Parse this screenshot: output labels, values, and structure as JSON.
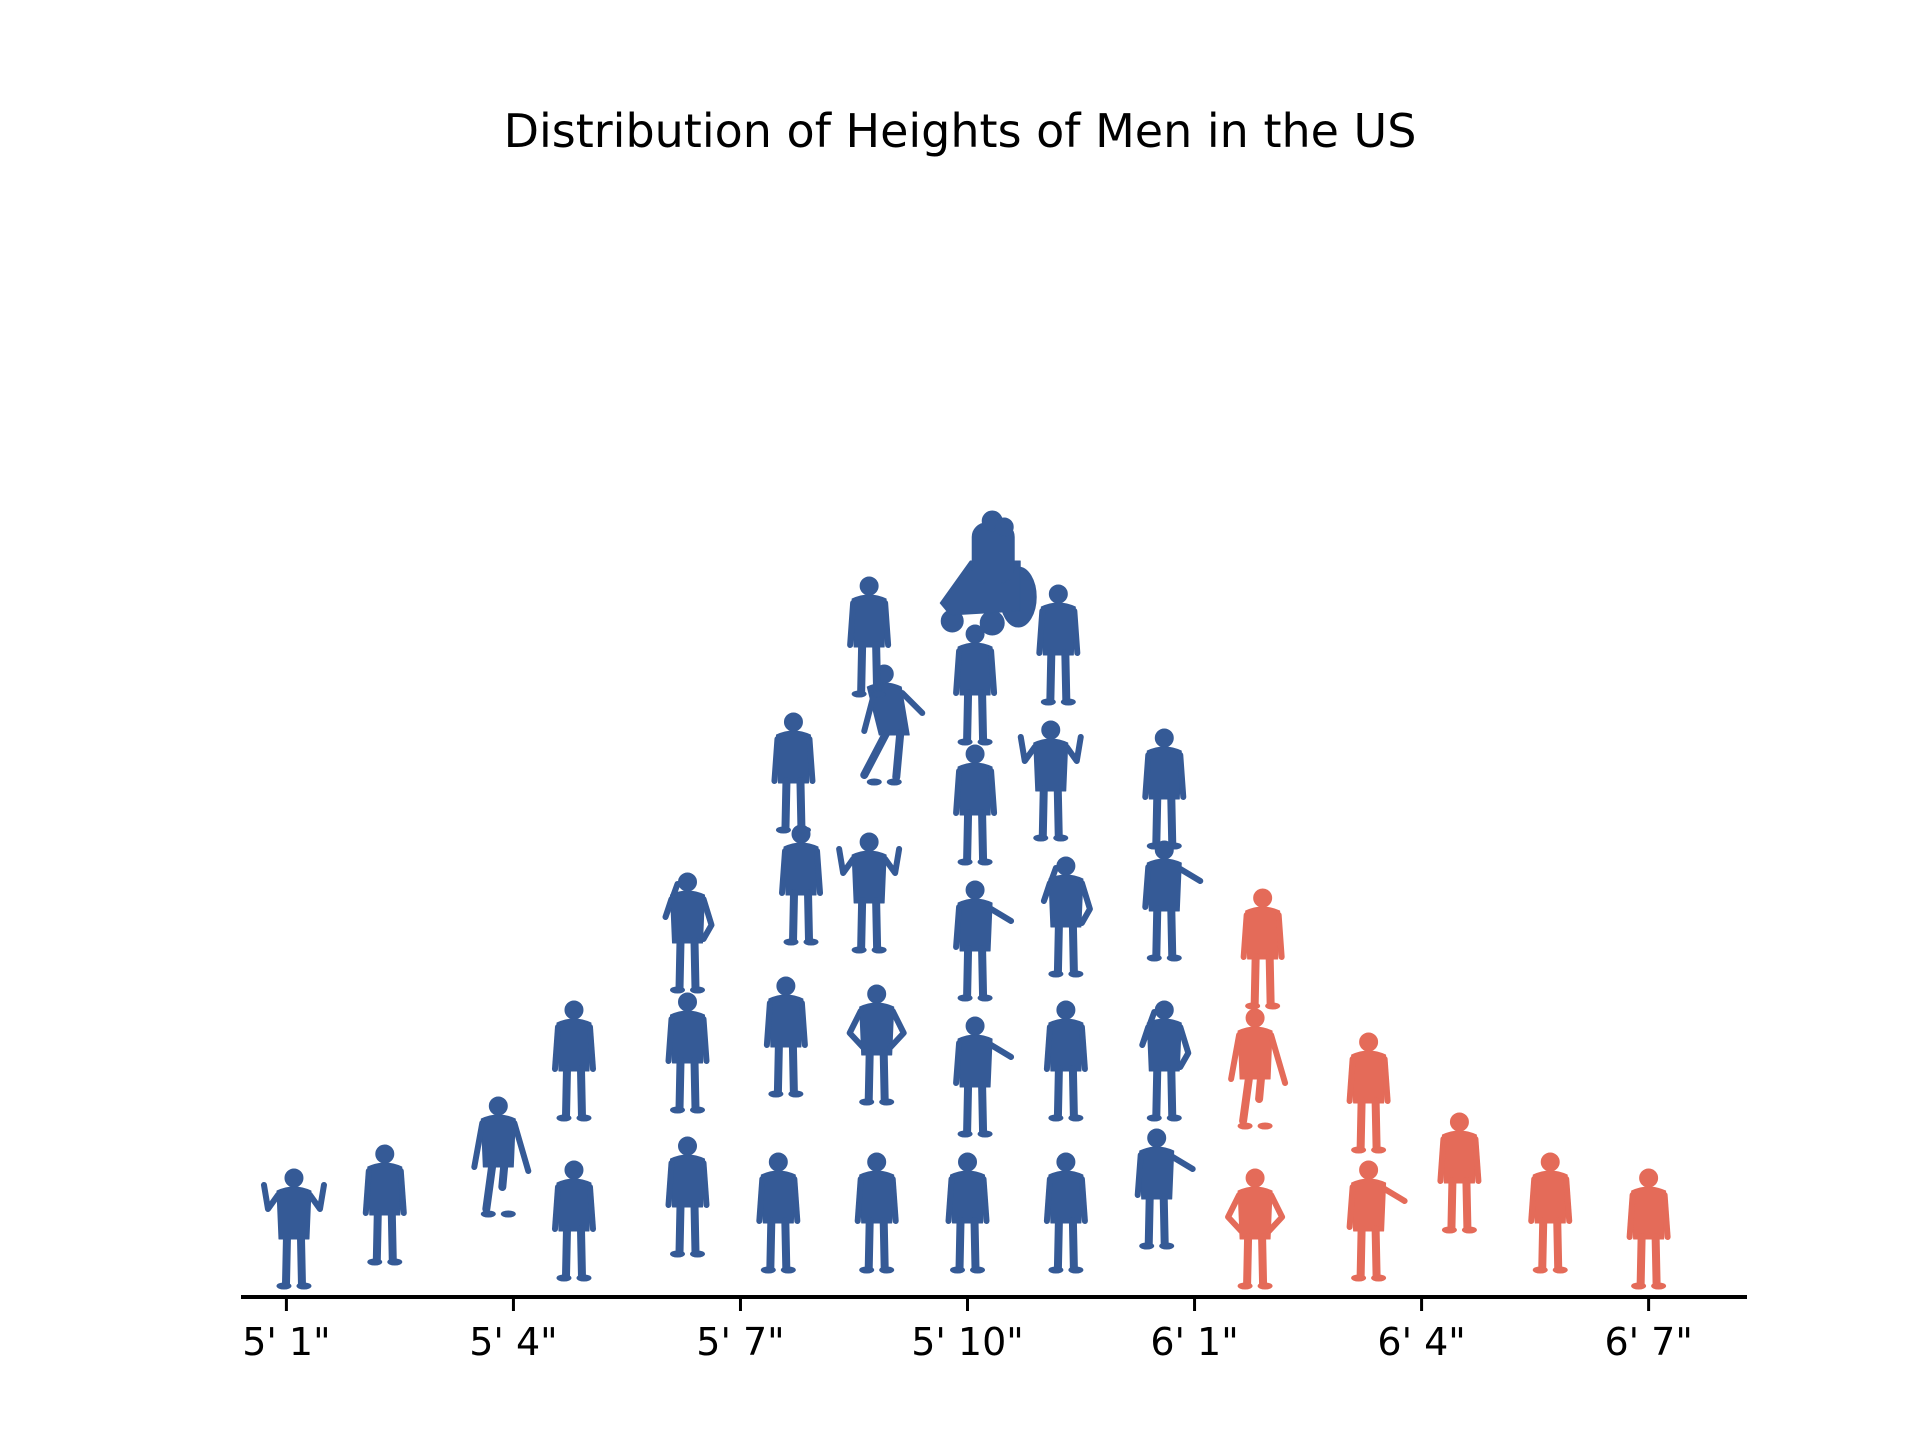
{
  "chart_data": {
    "type": "scatter",
    "subtype": "isotype-dot-plot",
    "title": "Distribution of Heights of Men in the US",
    "xlabel": "",
    "ylabel": "",
    "x_unit": "inches",
    "xlim": [
      60.4,
      80.3
    ],
    "ticks": [
      {
        "value": 61,
        "label": "5' 1\""
      },
      {
        "value": 64,
        "label": "5' 4\""
      },
      {
        "value": 67,
        "label": "5' 7\""
      },
      {
        "value": 70,
        "label": "5' 10\""
      },
      {
        "value": 73,
        "label": "6' 1\""
      },
      {
        "value": 76,
        "label": "6' 4\""
      },
      {
        "value": 79,
        "label": "6' 7\""
      }
    ],
    "grid": false,
    "legend": "none",
    "colors": {
      "under_6ft": "#355a96",
      "over_6ft": "#e46b59",
      "axis": "#000000"
    },
    "counts_by_height": [
      {
        "height": 61,
        "count": 1
      },
      {
        "height": 62,
        "count": 1
      },
      {
        "height": 63,
        "count": 1
      },
      {
        "height": 64,
        "count": 2
      },
      {
        "height": 65,
        "count": 3
      },
      {
        "height": 66,
        "count": 3
      },
      {
        "height": 67,
        "count": 4
      },
      {
        "height": 68,
        "count": 4
      },
      {
        "height": 69,
        "count": 5
      },
      {
        "height": 70,
        "count": 6
      },
      {
        "height": 71,
        "count": 5
      },
      {
        "height": 72,
        "count": 4
      },
      {
        "height": 73,
        "count": 3
      },
      {
        "height": 74,
        "count": 2
      },
      {
        "height": 75,
        "count": 1
      },
      {
        "height": 76,
        "count": 1
      },
      {
        "height": 77,
        "count": 1
      }
    ],
    "people": [
      {
        "x": 61.1,
        "y": 0.0,
        "pose": "arms-up",
        "group": "under_6ft"
      },
      {
        "x": 62.3,
        "y": 0.3,
        "pose": "stand",
        "group": "under_6ft"
      },
      {
        "x": 63.8,
        "y": 0.9,
        "pose": "walk",
        "group": "under_6ft"
      },
      {
        "x": 64.8,
        "y": 0.1,
        "pose": "stand",
        "group": "under_6ft"
      },
      {
        "x": 64.8,
        "y": 2.1,
        "pose": "stand",
        "group": "under_6ft"
      },
      {
        "x": 66.3,
        "y": 0.4,
        "pose": "stand",
        "group": "under_6ft"
      },
      {
        "x": 66.3,
        "y": 2.2,
        "pose": "stand",
        "group": "under_6ft"
      },
      {
        "x": 66.3,
        "y": 3.7,
        "pose": "phone",
        "group": "under_6ft"
      },
      {
        "x": 67.5,
        "y": 0.2,
        "pose": "stand",
        "group": "under_6ft"
      },
      {
        "x": 67.6,
        "y": 2.4,
        "pose": "stand",
        "group": "under_6ft"
      },
      {
        "x": 67.8,
        "y": 4.3,
        "pose": "stand",
        "group": "under_6ft"
      },
      {
        "x": 67.7,
        "y": 5.7,
        "pose": "stand",
        "group": "under_6ft"
      },
      {
        "x": 68.8,
        "y": 0.2,
        "pose": "stand",
        "group": "under_6ft"
      },
      {
        "x": 68.8,
        "y": 2.3,
        "pose": "hands-hips",
        "group": "under_6ft"
      },
      {
        "x": 68.7,
        "y": 4.2,
        "pose": "arms-up",
        "group": "under_6ft"
      },
      {
        "x": 68.9,
        "y": 6.3,
        "pose": "lean",
        "group": "under_6ft"
      },
      {
        "x": 68.7,
        "y": 7.4,
        "pose": "stand",
        "group": "under_6ft"
      },
      {
        "x": 70.0,
        "y": 0.2,
        "pose": "stand",
        "group": "under_6ft"
      },
      {
        "x": 70.1,
        "y": 1.9,
        "pose": "point",
        "group": "under_6ft"
      },
      {
        "x": 70.1,
        "y": 3.6,
        "pose": "point",
        "group": "under_6ft"
      },
      {
        "x": 70.1,
        "y": 5.3,
        "pose": "stand",
        "group": "under_6ft"
      },
      {
        "x": 70.1,
        "y": 6.8,
        "pose": "stand",
        "group": "under_6ft"
      },
      {
        "x": 70.3,
        "y": 8.2,
        "pose": "wheelchair",
        "group": "under_6ft"
      },
      {
        "x": 71.3,
        "y": 0.2,
        "pose": "stand",
        "group": "under_6ft"
      },
      {
        "x": 71.3,
        "y": 2.1,
        "pose": "stand",
        "group": "under_6ft"
      },
      {
        "x": 71.3,
        "y": 3.9,
        "pose": "phone",
        "group": "under_6ft"
      },
      {
        "x": 71.1,
        "y": 5.6,
        "pose": "arms-up",
        "group": "under_6ft"
      },
      {
        "x": 71.2,
        "y": 7.3,
        "pose": "stand",
        "group": "under_6ft"
      },
      {
        "x": 72.5,
        "y": 0.5,
        "pose": "point",
        "group": "under_6ft"
      },
      {
        "x": 72.6,
        "y": 2.1,
        "pose": "phone",
        "group": "under_6ft"
      },
      {
        "x": 72.6,
        "y": 4.1,
        "pose": "point",
        "group": "under_6ft"
      },
      {
        "x": 72.6,
        "y": 5.5,
        "pose": "stand",
        "group": "under_6ft"
      },
      {
        "x": 73.8,
        "y": 0.0,
        "pose": "hands-hips",
        "group": "over_6ft"
      },
      {
        "x": 73.8,
        "y": 2.0,
        "pose": "walk",
        "group": "over_6ft"
      },
      {
        "x": 73.9,
        "y": 3.5,
        "pose": "stand",
        "group": "over_6ft"
      },
      {
        "x": 75.3,
        "y": 0.1,
        "pose": "point",
        "group": "over_6ft"
      },
      {
        "x": 75.3,
        "y": 1.7,
        "pose": "stand",
        "group": "over_6ft"
      },
      {
        "x": 76.5,
        "y": 0.7,
        "pose": "stand",
        "group": "over_6ft"
      },
      {
        "x": 77.7,
        "y": 0.2,
        "pose": "stand",
        "group": "over_6ft"
      },
      {
        "x": 79.0,
        "y": 0.0,
        "pose": "stand",
        "group": "over_6ft"
      }
    ]
  }
}
